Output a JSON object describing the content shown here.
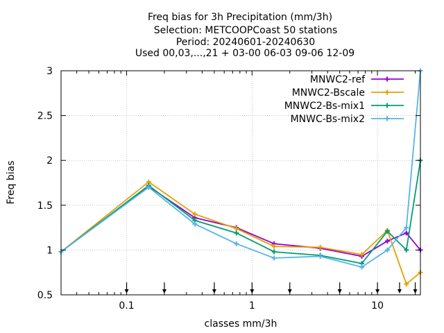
{
  "chart_data": {
    "type": "line",
    "title": [
      "Freq bias  for 3h Precipitation (mm/3h)",
      "Selection: METCOOPCoast     50 stations",
      "Period: 20240601-20240630",
      "Used 00,03,...,21 + 03-00 06-03 09-06 12-09"
    ],
    "xlabel": "classes mm/3h",
    "ylabel": "Freq bias",
    "xscale": "log",
    "xlim": [
      0.03,
      22
    ],
    "ylim": [
      0.5,
      3
    ],
    "xticks": [
      {
        "value": 0.1,
        "label": "0.1"
      },
      {
        "value": 1,
        "label": "1"
      },
      {
        "value": 10,
        "label": "10"
      }
    ],
    "yticks": [
      {
        "value": 0.5,
        "label": "0.5"
      },
      {
        "value": 1,
        "label": "1"
      },
      {
        "value": 1.5,
        "label": "1.5"
      },
      {
        "value": 2,
        "label": "2"
      },
      {
        "value": 2.5,
        "label": "2.5"
      },
      {
        "value": 3,
        "label": "3"
      }
    ],
    "grid": true,
    "legend_position": "top-right",
    "class_markers": [
      0.1,
      0.2,
      0.5,
      1,
      2,
      5,
      10,
      15,
      20
    ],
    "x": [
      0.03,
      0.15,
      0.35,
      0.75,
      1.5,
      3.5,
      7.5,
      12,
      17,
      22
    ],
    "series": [
      {
        "name": "MNWC2-ref",
        "color": "#9400d3",
        "marker": "plus",
        "values": [
          0.98,
          1.71,
          1.36,
          1.25,
          1.07,
          1.02,
          0.93,
          1.1,
          1.19,
          1.0
        ]
      },
      {
        "name": "MNWC2-Bscale",
        "color": "#e69f00",
        "marker": "plus",
        "values": [
          0.98,
          1.76,
          1.4,
          1.24,
          1.04,
          1.03,
          0.95,
          1.22,
          0.62,
          0.75
        ]
      },
      {
        "name": "MNWC2-Bs-mix1",
        "color": "#009e73",
        "marker": "plus",
        "values": [
          0.98,
          1.72,
          1.33,
          1.19,
          0.98,
          0.94,
          0.85,
          1.21,
          1.0,
          2.0
        ]
      },
      {
        "name": "MNWC-Bs-mix2",
        "color": "#56b4e9",
        "marker": "plus",
        "values": [
          0.98,
          1.7,
          1.29,
          1.07,
          0.91,
          0.93,
          0.81,
          1.0,
          1.25,
          3.0
        ]
      }
    ]
  }
}
